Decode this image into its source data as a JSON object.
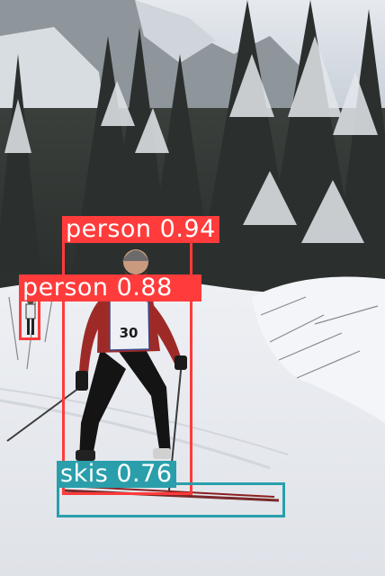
{
  "detections": [
    {
      "label": "person",
      "score": "0.94",
      "color": "#ff3b3b"
    },
    {
      "label": "person",
      "score": "0.88",
      "color": "#ff3b3b"
    },
    {
      "label": "skis",
      "score": "0.76",
      "color": "#2a9fab"
    }
  ]
}
